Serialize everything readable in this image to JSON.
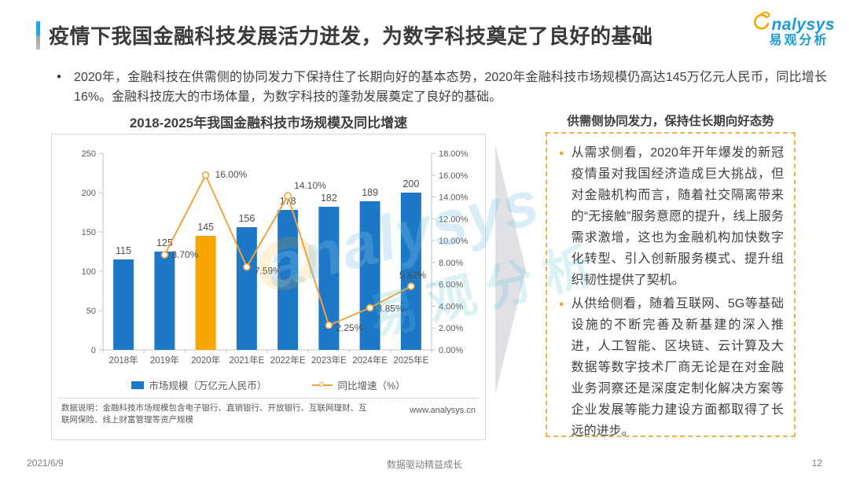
{
  "page": {
    "title": "疫情下我国金融科技发展活力迸发，为数字科技奠定了良好的基础",
    "intro": "2020年，金融科技在供需侧的协同发力下保持住了长期向好的基本态势，2020年金融科技市场规模仍高达145万亿元人民币，同比增长16%。金融科技庞大的市场体量，为数字科技的蓬勃发展奠定了良好的基础。",
    "footer": {
      "date": "2021/6/9",
      "slogan": "数据驱动精益成长",
      "page_number": "12"
    }
  },
  "logo": {
    "en": "nalysys",
    "cn": "易观分析"
  },
  "watermark": {
    "en": "analysys",
    "cn": "易观分析"
  },
  "chart_data": {
    "type": "bar+line",
    "title": "2018-2025年我国金融科技市场规模及同比增速",
    "categories": [
      "2018年",
      "2019年",
      "2020年",
      "2021年E",
      "2022年E",
      "2023年E",
      "2024年E",
      "2025年E"
    ],
    "series": [
      {
        "name": "市场规模（万亿元人民币）",
        "type": "bar",
        "axis": "left",
        "values": [
          115,
          125,
          145,
          156,
          178,
          182,
          189,
          200
        ],
        "labels": [
          "115",
          "125",
          "145",
          "156",
          "178",
          "182",
          "189",
          "200"
        ],
        "color": "#1e78c8",
        "highlight_index": 2,
        "highlight_color": "#f7a600"
      },
      {
        "name": "同比增速（%）",
        "type": "line",
        "axis": "right",
        "values": [
          null,
          8.7,
          16.0,
          7.59,
          14.1,
          2.25,
          3.85,
          5.82
        ],
        "labels": [
          "",
          "8.70%",
          "16.00%",
          "7.59%",
          "14.10%",
          "2.25%",
          "3.85%",
          "5.82%"
        ],
        "color": "#efa33c"
      }
    ],
    "left_axis": {
      "min": 0,
      "max": 250,
      "ticks": [
        0,
        50,
        100,
        150,
        200,
        250
      ]
    },
    "right_axis": {
      "min": 0,
      "max": 18,
      "ticks": [
        "0.00%",
        "2.00%",
        "4.00%",
        "6.00%",
        "8.00%",
        "10.00%",
        "12.00%",
        "14.00%",
        "16.00%",
        "18.00%"
      ]
    },
    "legend_position": "bottom",
    "grid": false,
    "note": "数据说明：金融科技市场规模包含电子银行、直销银行、开放银行、互联网理财、互联网保险、线上财富管理等资产规模",
    "source_url": "www.analysys.cn"
  },
  "insight_panel": {
    "title": "供需侧协同发力，保持住长期向好态势",
    "bullets": [
      "从需求侧看，2020年开年爆发的新冠疫情虽对我国经济造成巨大挑战，但对金融机构而言，随着社交隔离带来的“无接触”服务意愿的提升，线上服务需求激增，这也为金融机构加快数字化转型、引入创新服务模式、提升组织韧性提供了契机。",
      "从供给侧看，随着互联网、5G等基础设施的不断完善及新基建的深入推进，人工智能、区块链、云计算及大数据等数字技术厂商无论是在对金融业务洞察还是深度定制化解决方案等企业发展等能力建设方面都取得了长远的进步。"
    ]
  }
}
